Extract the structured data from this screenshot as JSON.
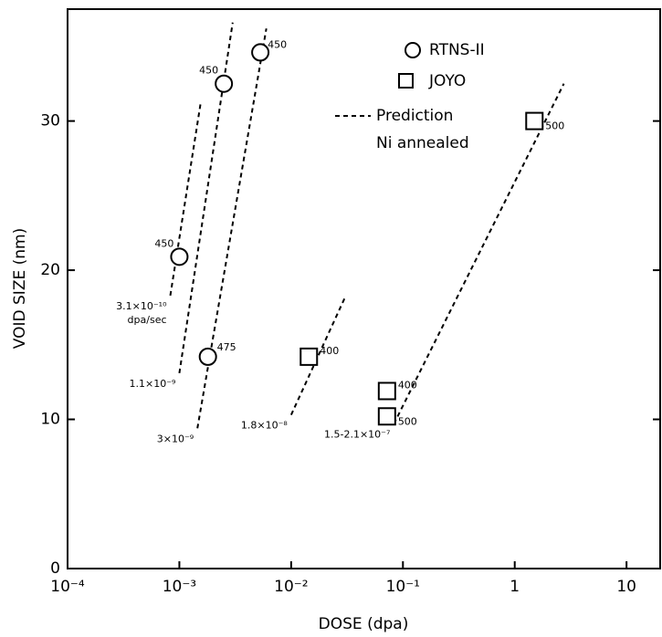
{
  "chart_data": {
    "type": "scatter",
    "x_label": "DOSE (dpa)",
    "y_label": "VOID SIZE (nm)",
    "xlog": true,
    "xlim": [
      0.0001,
      20
    ],
    "ylim": [
      0,
      37.5
    ],
    "xticks": [
      {
        "value": 0.0001,
        "label": "10⁻⁴"
      },
      {
        "value": 0.001,
        "label": "10⁻³"
      },
      {
        "value": 0.01,
        "label": "10⁻²"
      },
      {
        "value": 0.1,
        "label": "10⁻¹"
      },
      1,
      10
    ],
    "yticks": [
      0,
      10,
      20,
      30
    ],
    "series": [
      {
        "name": "RTNS-II",
        "marker": "circle",
        "color": "#000000",
        "x": [
          0.001,
          0.0025,
          0.0053,
          0.0018
        ],
        "values": [
          20.9,
          32.5,
          34.6,
          14.2
        ],
        "point_labels": [
          "450",
          "450",
          "450",
          "475"
        ]
      },
      {
        "name": "JOYO",
        "marker": "square",
        "color": "#000000",
        "x": [
          0.0144,
          0.072,
          0.072,
          1.5
        ],
        "values": [
          14.2,
          11.9,
          10.2,
          30
        ],
        "point_labels": [
          "400",
          "400",
          "500",
          "500"
        ]
      }
    ],
    "prediction": {
      "name": "Prediction",
      "note": "Ni annealed",
      "color": "#000000",
      "lines": [
        {
          "label": "3.1×10⁻¹⁰",
          "unit": "dpa/sec",
          "x": [
            0.00083,
            0.00155
          ],
          "y": [
            18.3,
            31.2
          ]
        },
        {
          "label": "1.1×10⁻⁹",
          "x": [
            0.001,
            0.003
          ],
          "y": [
            13.1,
            36.6
          ]
        },
        {
          "label": "3×10⁻⁹",
          "x": [
            0.00145,
            0.006
          ],
          "y": [
            9.4,
            36.2
          ]
        },
        {
          "label": "1.8×10⁻⁸",
          "x": [
            0.01,
            0.03
          ],
          "y": [
            10.3,
            18.1
          ]
        },
        {
          "label": "1.5-2.1×10⁻⁷",
          "x": [
            0.083,
            2.75
          ],
          "y": [
            9.7,
            32.5
          ]
        }
      ]
    }
  }
}
